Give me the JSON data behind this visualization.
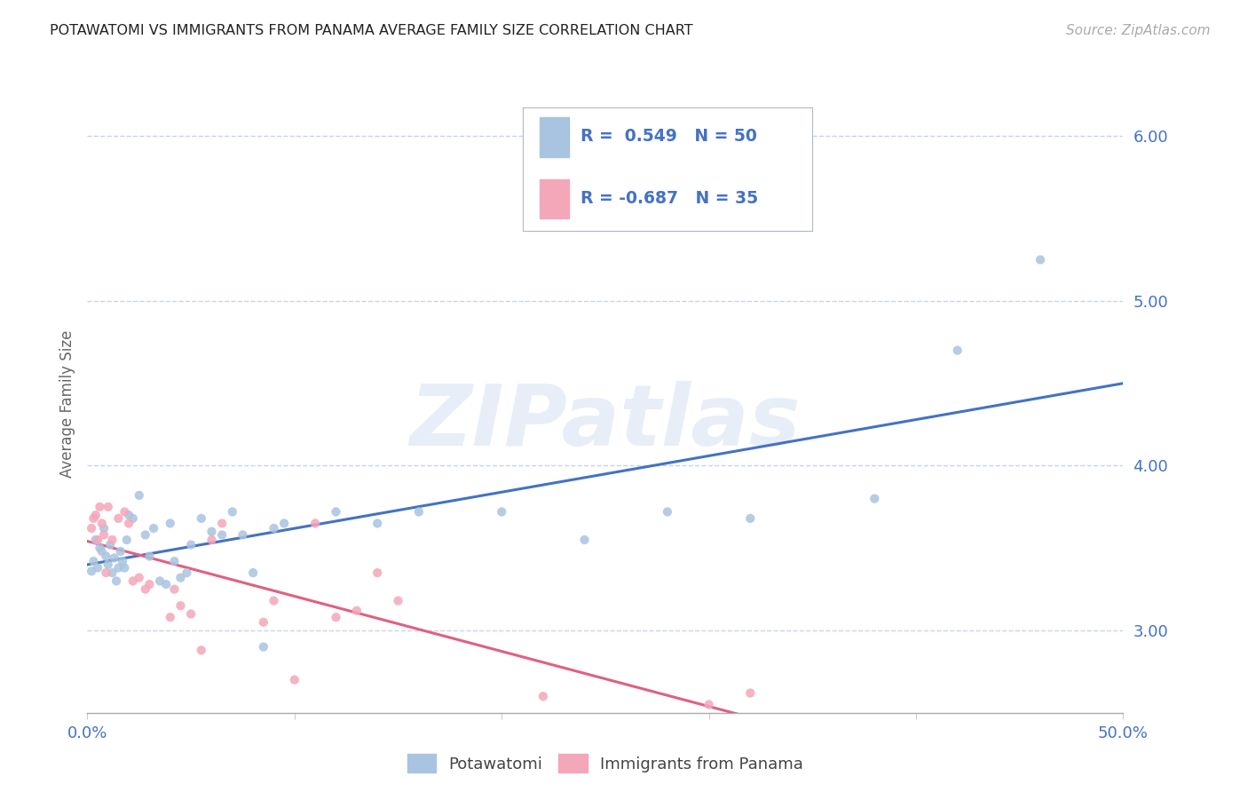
{
  "title": "POTAWATOMI VS IMMIGRANTS FROM PANAMA AVERAGE FAMILY SIZE CORRELATION CHART",
  "source": "Source: ZipAtlas.com",
  "ylabel_label": "Average Family Size",
  "legend_labels": [
    "Potawatomi",
    "Immigrants from Panama"
  ],
  "blue_color": "#a8c4e0",
  "pink_color": "#f4a7b9",
  "line_blue": "#4472c4",
  "line_pink": "#e06080",
  "text_blue": "#4472c4",
  "axis_label_color": "#4472c4",
  "R_blue": 0.549,
  "N_blue": 50,
  "R_pink": -0.687,
  "N_pink": 35,
  "blue_points": [
    [
      0.002,
      3.36
    ],
    [
      0.003,
      3.42
    ],
    [
      0.004,
      3.55
    ],
    [
      0.005,
      3.38
    ],
    [
      0.006,
      3.5
    ],
    [
      0.007,
      3.48
    ],
    [
      0.008,
      3.62
    ],
    [
      0.009,
      3.45
    ],
    [
      0.01,
      3.4
    ],
    [
      0.011,
      3.52
    ],
    [
      0.012,
      3.35
    ],
    [
      0.013,
      3.44
    ],
    [
      0.014,
      3.3
    ],
    [
      0.015,
      3.38
    ],
    [
      0.016,
      3.48
    ],
    [
      0.017,
      3.42
    ],
    [
      0.018,
      3.38
    ],
    [
      0.019,
      3.55
    ],
    [
      0.02,
      3.7
    ],
    [
      0.022,
      3.68
    ],
    [
      0.025,
      3.82
    ],
    [
      0.028,
      3.58
    ],
    [
      0.03,
      3.45
    ],
    [
      0.032,
      3.62
    ],
    [
      0.035,
      3.3
    ],
    [
      0.038,
      3.28
    ],
    [
      0.04,
      3.65
    ],
    [
      0.042,
      3.42
    ],
    [
      0.045,
      3.32
    ],
    [
      0.048,
      3.35
    ],
    [
      0.05,
      3.52
    ],
    [
      0.055,
      3.68
    ],
    [
      0.06,
      3.6
    ],
    [
      0.065,
      3.58
    ],
    [
      0.07,
      3.72
    ],
    [
      0.075,
      3.58
    ],
    [
      0.08,
      3.35
    ],
    [
      0.085,
      2.9
    ],
    [
      0.09,
      3.62
    ],
    [
      0.095,
      3.65
    ],
    [
      0.12,
      3.72
    ],
    [
      0.14,
      3.65
    ],
    [
      0.16,
      3.72
    ],
    [
      0.2,
      3.72
    ],
    [
      0.24,
      3.55
    ],
    [
      0.28,
      3.72
    ],
    [
      0.32,
      3.68
    ],
    [
      0.38,
      3.8
    ],
    [
      0.42,
      4.7
    ],
    [
      0.46,
      5.25
    ]
  ],
  "pink_points": [
    [
      0.002,
      3.62
    ],
    [
      0.003,
      3.68
    ],
    [
      0.004,
      3.7
    ],
    [
      0.005,
      3.55
    ],
    [
      0.006,
      3.75
    ],
    [
      0.007,
      3.65
    ],
    [
      0.008,
      3.58
    ],
    [
      0.009,
      3.35
    ],
    [
      0.01,
      3.75
    ],
    [
      0.012,
      3.55
    ],
    [
      0.015,
      3.68
    ],
    [
      0.018,
      3.72
    ],
    [
      0.02,
      3.65
    ],
    [
      0.022,
      3.3
    ],
    [
      0.025,
      3.32
    ],
    [
      0.028,
      3.25
    ],
    [
      0.03,
      3.28
    ],
    [
      0.04,
      3.08
    ],
    [
      0.042,
      3.25
    ],
    [
      0.045,
      3.15
    ],
    [
      0.05,
      3.1
    ],
    [
      0.055,
      2.88
    ],
    [
      0.06,
      3.55
    ],
    [
      0.065,
      3.65
    ],
    [
      0.085,
      3.05
    ],
    [
      0.09,
      3.18
    ],
    [
      0.1,
      2.7
    ],
    [
      0.11,
      3.65
    ],
    [
      0.12,
      3.08
    ],
    [
      0.13,
      3.12
    ],
    [
      0.14,
      3.35
    ],
    [
      0.15,
      3.18
    ],
    [
      0.22,
      2.6
    ],
    [
      0.3,
      2.55
    ],
    [
      0.32,
      2.62
    ]
  ],
  "watermark": "ZIPatlas",
  "xlim": [
    0.0,
    0.5
  ],
  "ylim": [
    2.5,
    6.25
  ],
  "background": "#ffffff",
  "grid_color": "#c8d4e8"
}
